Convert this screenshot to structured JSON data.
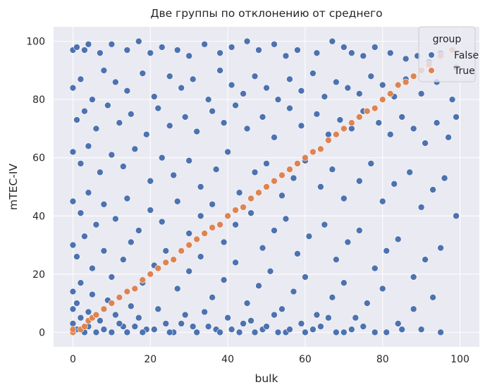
{
  "chart_data": {
    "type": "scatter",
    "title": "Две группы по отклонению от среднего",
    "xlabel": "bulk",
    "ylabel": "mTEC-IV",
    "xlim": [
      -5,
      105
    ],
    "ylim": [
      -5,
      105
    ],
    "xticks": [
      0,
      20,
      40,
      60,
      80,
      100
    ],
    "yticks": [
      0,
      20,
      40,
      60,
      80,
      100
    ],
    "grid": true,
    "background": "#eaeaf2",
    "legend": {
      "title": "group",
      "placement": "top-right",
      "entries": [
        {
          "label": "False",
          "color": "#4c72b0"
        },
        {
          "label": "True",
          "color": "#dd8452"
        }
      ]
    },
    "series": [
      {
        "name": "False",
        "color": "#4c72b0",
        "points": [
          [
            0,
            97
          ],
          [
            1,
            98
          ],
          [
            3,
            97
          ],
          [
            4,
            99
          ],
          [
            7,
            96
          ],
          [
            10,
            99
          ],
          [
            14,
            97
          ],
          [
            17,
            100
          ],
          [
            20,
            96
          ],
          [
            23,
            98
          ],
          [
            27,
            97
          ],
          [
            30,
            95
          ],
          [
            34,
            99
          ],
          [
            38,
            96
          ],
          [
            41,
            98
          ],
          [
            45,
            100
          ],
          [
            48,
            97
          ],
          [
            52,
            99
          ],
          [
            55,
            95
          ],
          [
            58,
            97
          ],
          [
            63,
            96
          ],
          [
            67,
            100
          ],
          [
            70,
            98
          ],
          [
            72,
            96
          ],
          [
            75,
            95
          ],
          [
            78,
            98
          ],
          [
            82,
            96
          ],
          [
            86,
            94
          ],
          [
            89,
            95
          ],
          [
            92,
            93
          ],
          [
            95,
            96
          ],
          [
            99,
            91
          ],
          [
            0,
            84
          ],
          [
            2,
            87
          ],
          [
            5,
            80
          ],
          [
            8,
            90
          ],
          [
            11,
            86
          ],
          [
            14,
            83
          ],
          [
            18,
            89
          ],
          [
            21,
            81
          ],
          [
            25,
            88
          ],
          [
            28,
            84
          ],
          [
            31,
            87
          ],
          [
            35,
            80
          ],
          [
            38,
            90
          ],
          [
            41,
            85
          ],
          [
            44,
            82
          ],
          [
            47,
            88
          ],
          [
            50,
            84
          ],
          [
            53,
            80
          ],
          [
            56,
            87
          ],
          [
            59,
            83
          ],
          [
            62,
            89
          ],
          [
            65,
            81
          ],
          [
            68,
            86
          ],
          [
            71,
            84
          ],
          [
            74,
            82
          ],
          [
            77,
            88
          ],
          [
            80,
            85
          ],
          [
            83,
            81
          ],
          [
            86,
            87
          ],
          [
            90,
            82
          ],
          [
            94,
            86
          ],
          [
            98,
            80
          ],
          [
            1,
            73
          ],
          [
            3,
            76
          ],
          [
            6,
            70
          ],
          [
            9,
            78
          ],
          [
            12,
            72
          ],
          [
            15,
            75
          ],
          [
            19,
            68
          ],
          [
            22,
            77
          ],
          [
            25,
            71
          ],
          [
            29,
            74
          ],
          [
            32,
            69
          ],
          [
            36,
            76
          ],
          [
            39,
            72
          ],
          [
            42,
            78
          ],
          [
            45,
            70
          ],
          [
            49,
            74
          ],
          [
            52,
            67
          ],
          [
            56,
            77
          ],
          [
            59,
            71
          ],
          [
            63,
            75
          ],
          [
            66,
            68
          ],
          [
            69,
            73
          ],
          [
            72,
            70
          ],
          [
            75,
            76
          ],
          [
            79,
            72
          ],
          [
            82,
            68
          ],
          [
            85,
            74
          ],
          [
            88,
            70
          ],
          [
            91,
            65
          ],
          [
            94,
            72
          ],
          [
            97,
            67
          ],
          [
            99,
            74
          ],
          [
            0,
            62
          ],
          [
            2,
            58
          ],
          [
            4,
            64
          ],
          [
            7,
            55
          ],
          [
            10,
            61
          ],
          [
            13,
            57
          ],
          [
            16,
            63
          ],
          [
            20,
            52
          ],
          [
            23,
            60
          ],
          [
            26,
            54
          ],
          [
            30,
            59
          ],
          [
            33,
            50
          ],
          [
            37,
            56
          ],
          [
            40,
            62
          ],
          [
            43,
            48
          ],
          [
            47,
            55
          ],
          [
            50,
            58
          ],
          [
            54,
            47
          ],
          [
            57,
            53
          ],
          [
            60,
            59
          ],
          [
            64,
            50
          ],
          [
            67,
            56
          ],
          [
            70,
            46
          ],
          [
            74,
            52
          ],
          [
            77,
            58
          ],
          [
            80,
            45
          ],
          [
            83,
            51
          ],
          [
            87,
            55
          ],
          [
            90,
            43
          ],
          [
            93,
            49
          ],
          [
            96,
            53
          ],
          [
            99,
            40
          ],
          [
            0,
            45
          ],
          [
            2,
            41
          ],
          [
            4,
            48
          ],
          [
            6,
            37
          ],
          [
            8,
            44
          ],
          [
            11,
            39
          ],
          [
            14,
            46
          ],
          [
            17,
            35
          ],
          [
            20,
            42
          ],
          [
            23,
            38
          ],
          [
            27,
            45
          ],
          [
            30,
            34
          ],
          [
            33,
            40
          ],
          [
            36,
            44
          ],
          [
            39,
            31
          ],
          [
            42,
            37
          ],
          [
            46,
            41
          ],
          [
            49,
            29
          ],
          [
            52,
            35
          ],
          [
            55,
            39
          ],
          [
            58,
            27
          ],
          [
            61,
            33
          ],
          [
            65,
            37
          ],
          [
            68,
            25
          ],
          [
            71,
            31
          ],
          [
            74,
            35
          ],
          [
            78,
            22
          ],
          [
            81,
            28
          ],
          [
            84,
            32
          ],
          [
            88,
            19
          ],
          [
            91,
            25
          ],
          [
            95,
            29
          ],
          [
            0,
            30
          ],
          [
            1,
            26
          ],
          [
            3,
            33
          ],
          [
            5,
            22
          ],
          [
            8,
            28
          ],
          [
            10,
            19
          ],
          [
            13,
            25
          ],
          [
            15,
            31
          ],
          [
            18,
            17
          ],
          [
            21,
            23
          ],
          [
            24,
            28
          ],
          [
            27,
            15
          ],
          [
            30,
            21
          ],
          [
            33,
            26
          ],
          [
            36,
            12
          ],
          [
            39,
            18
          ],
          [
            42,
            24
          ],
          [
            45,
            10
          ],
          [
            48,
            16
          ],
          [
            51,
            21
          ],
          [
            54,
            8
          ],
          [
            57,
            14
          ],
          [
            60,
            19
          ],
          [
            63,
            6
          ],
          [
            67,
            12
          ],
          [
            70,
            17
          ],
          [
            73,
            5
          ],
          [
            76,
            10
          ],
          [
            80,
            15
          ],
          [
            84,
            3
          ],
          [
            88,
            8
          ],
          [
            93,
            12
          ],
          [
            0,
            14
          ],
          [
            1,
            10
          ],
          [
            2,
            17
          ],
          [
            4,
            7
          ],
          [
            5,
            13
          ],
          [
            7,
            4
          ],
          [
            9,
            11
          ],
          [
            11,
            6
          ],
          [
            13,
            2
          ],
          [
            15,
            9
          ],
          [
            17,
            5
          ],
          [
            19,
            1
          ],
          [
            22,
            8
          ],
          [
            24,
            3
          ],
          [
            26,
            0
          ],
          [
            29,
            6
          ],
          [
            31,
            2
          ],
          [
            34,
            7
          ],
          [
            37,
            1
          ],
          [
            40,
            5
          ],
          [
            43,
            0
          ],
          [
            46,
            4
          ],
          [
            49,
            1
          ],
          [
            52,
            6
          ],
          [
            55,
            0
          ],
          [
            59,
            3
          ],
          [
            62,
            1
          ],
          [
            66,
            5
          ],
          [
            70,
            0
          ],
          [
            75,
            2
          ],
          [
            81,
            0
          ],
          [
            90,
            1
          ],
          [
            0,
            3
          ],
          [
            0,
            8
          ],
          [
            1,
            1
          ],
          [
            2,
            5
          ],
          [
            3,
            0
          ],
          [
            4,
            2
          ],
          [
            6,
            0
          ],
          [
            8,
            1
          ],
          [
            10,
            0
          ],
          [
            12,
            3
          ],
          [
            14,
            0
          ],
          [
            16,
            2
          ],
          [
            18,
            0
          ],
          [
            21,
            1
          ],
          [
            25,
            0
          ],
          [
            28,
            3
          ],
          [
            32,
            0
          ],
          [
            35,
            2
          ],
          [
            38,
            0
          ],
          [
            41,
            1
          ],
          [
            44,
            3
          ],
          [
            47,
            0
          ],
          [
            50,
            2
          ],
          [
            53,
            0
          ],
          [
            56,
            1
          ],
          [
            60,
            0
          ],
          [
            64,
            2
          ],
          [
            68,
            0
          ],
          [
            72,
            1
          ],
          [
            78,
            0
          ],
          [
            85,
            1
          ],
          [
            95,
            0
          ]
        ]
      },
      {
        "name": "True",
        "color": "#dd8452",
        "points": [
          [
            0,
            0
          ],
          [
            0,
            1
          ],
          [
            2,
            1
          ],
          [
            3,
            2
          ],
          [
            4,
            4
          ],
          [
            5,
            5
          ],
          [
            6,
            6
          ],
          [
            8,
            8
          ],
          [
            10,
            10
          ],
          [
            12,
            12
          ],
          [
            14,
            14
          ],
          [
            16,
            15
          ],
          [
            18,
            18
          ],
          [
            20,
            20
          ],
          [
            22,
            22
          ],
          [
            24,
            24
          ],
          [
            26,
            25
          ],
          [
            28,
            28
          ],
          [
            30,
            30
          ],
          [
            32,
            32
          ],
          [
            34,
            34
          ],
          [
            36,
            36
          ],
          [
            38,
            37
          ],
          [
            40,
            40
          ],
          [
            42,
            42
          ],
          [
            44,
            43
          ],
          [
            46,
            46
          ],
          [
            48,
            48
          ],
          [
            50,
            50
          ],
          [
            52,
            52
          ],
          [
            54,
            54
          ],
          [
            56,
            56
          ],
          [
            58,
            58
          ],
          [
            60,
            60
          ],
          [
            62,
            62
          ],
          [
            64,
            63
          ],
          [
            66,
            66
          ],
          [
            68,
            68
          ],
          [
            70,
            70
          ],
          [
            72,
            72
          ],
          [
            74,
            74
          ],
          [
            76,
            76
          ],
          [
            78,
            77
          ],
          [
            80,
            80
          ],
          [
            82,
            82
          ],
          [
            84,
            85
          ],
          [
            86,
            86
          ],
          [
            88,
            88
          ],
          [
            90,
            90
          ],
          [
            92,
            92
          ],
          [
            95,
            95
          ],
          [
            98,
            97
          ]
        ]
      }
    ]
  }
}
